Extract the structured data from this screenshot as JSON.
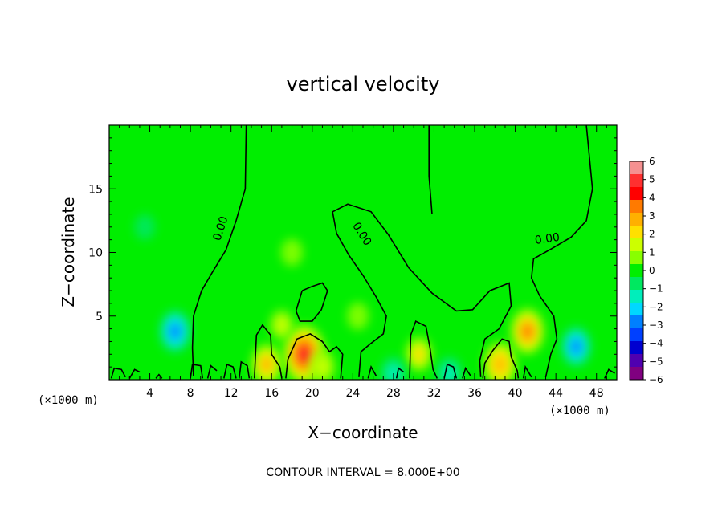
{
  "chart_data": {
    "type": "heatmap",
    "title": "vertical velocity",
    "xlabel": "X−coordinate",
    "ylabel": "Z−coordinate",
    "x_unit": "(×1000 m)",
    "y_unit": "(×1000 m)",
    "xlim": [
      0,
      50
    ],
    "ylim": [
      0,
      20
    ],
    "x_ticks": [
      4,
      8,
      12,
      16,
      20,
      24,
      28,
      32,
      36,
      40,
      44,
      48
    ],
    "y_ticks": [
      5,
      10,
      15
    ],
    "colorbar": {
      "range": [
        -6,
        6
      ],
      "ticks": [
        6,
        5,
        4,
        3,
        2,
        1,
        0,
        -1,
        -2,
        -3,
        -4,
        -5,
        -6
      ],
      "tick_labels": [
        "6",
        "5",
        "4",
        "3",
        "2",
        "1",
        "0",
        "−1",
        "−2",
        "−3",
        "−4",
        "−5",
        "−6"
      ],
      "colors": [
        "#f59090",
        "#ff3030",
        "#ff0000",
        "#ff7a00",
        "#ffb000",
        "#ffe000",
        "#ccff00",
        "#88ff00",
        "#00ee00",
        "#00e860",
        "#00eebb",
        "#00d8ff",
        "#0080ff",
        "#0040ff",
        "#0000d0",
        "#5000b0",
        "#800080"
      ]
    },
    "contour_label": "0.00",
    "contour_interval_text": "CONTOUR INTERVAL = 8.000E+00",
    "features": [
      {
        "x": 19.2,
        "z": 2.0,
        "w": 4.8
      },
      {
        "x": 41.2,
        "z": 3.8,
        "w": 3.2
      },
      {
        "x": 38.5,
        "z": 1.2,
        "w": 3.0
      },
      {
        "x": 15.5,
        "z": 1.2,
        "w": 2.6
      },
      {
        "x": 30.5,
        "z": 2.0,
        "w": 1.8
      },
      {
        "x": 21.0,
        "z": 1.0,
        "w": 1.6
      },
      {
        "x": 17.0,
        "z": 4.3,
        "w": 1.2
      },
      {
        "x": 24.5,
        "z": 5.0,
        "w": 0.8
      },
      {
        "x": 18.0,
        "z": 10.0,
        "w": 0.8
      },
      {
        "x": 6.5,
        "z": 3.8,
        "w": -2.8
      },
      {
        "x": 46.0,
        "z": 2.6,
        "w": -2.5
      },
      {
        "x": 28.0,
        "z": 0.5,
        "w": -1.6
      },
      {
        "x": 33.5,
        "z": 0.5,
        "w": -1.6
      },
      {
        "x": 3.5,
        "z": 12.0,
        "w": -0.6
      }
    ]
  }
}
